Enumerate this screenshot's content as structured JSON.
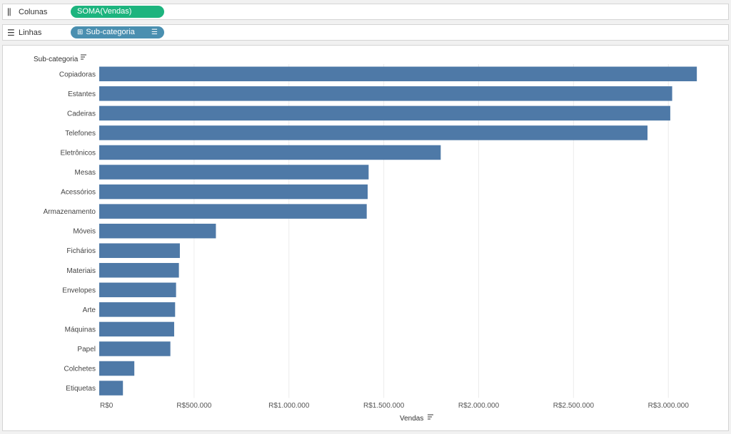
{
  "shelves": {
    "columns": {
      "label": "Colunas",
      "pill": "SOMA(Vendas)"
    },
    "rows": {
      "label": "Linhas",
      "pill": "Sub-categoria"
    }
  },
  "colors": {
    "bar": "#4e79a7",
    "columns_pill": "#1db47e",
    "rows_pill": "#4a8fb0"
  },
  "chart_data": {
    "type": "bar",
    "orientation": "horizontal",
    "row_header": "Sub-categoria",
    "xlabel": "Vendas",
    "categories": [
      "Copiadoras",
      "Estantes",
      "Cadeiras",
      "Telefones",
      "Eletrônicos",
      "Mesas",
      "Acessórios",
      "Armazenamento",
      "Móveis",
      "Fichários",
      "Materiais",
      "Envelopes",
      "Arte",
      "Máquinas",
      "Papel",
      "Colchetes",
      "Etiquetas"
    ],
    "values": [
      3150000,
      3020000,
      3010000,
      2890000,
      1800000,
      1420000,
      1415000,
      1410000,
      615000,
      425000,
      420000,
      405000,
      400000,
      395000,
      375000,
      185000,
      125000
    ],
    "xlim": [
      0,
      3300000
    ],
    "xticks": [
      0,
      500000,
      1000000,
      1500000,
      2000000,
      2500000,
      3000000
    ],
    "xtick_labels": [
      "R$0",
      "R$500.000",
      "R$1.000.000",
      "R$1.500.000",
      "R$2.000.000",
      "R$2.500.000",
      "R$3.000.000"
    ],
    "gridlines": true,
    "sorted": "descending"
  }
}
